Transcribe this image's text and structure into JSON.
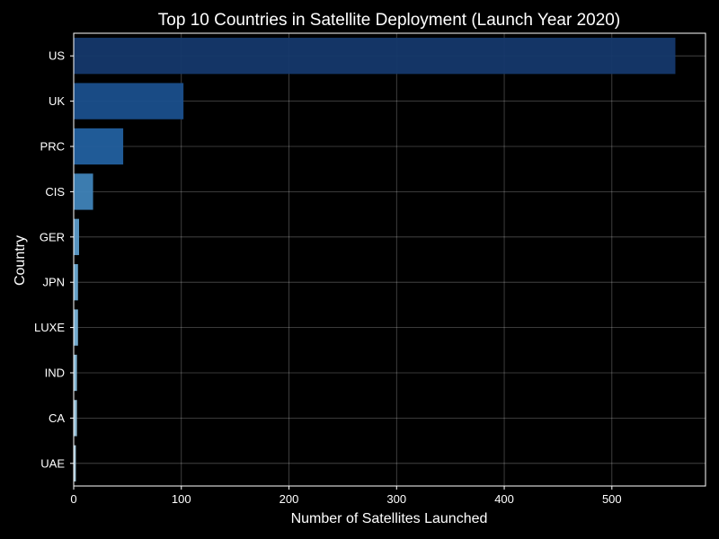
{
  "chart_data": {
    "type": "bar",
    "orientation": "horizontal",
    "title": "Top 10 Countries in Satellite Deployment (Launch Year 2020)",
    "xlabel": "Number of Satellites Launched",
    "ylabel": "Country",
    "categories": [
      "US",
      "UK",
      "PRC",
      "CIS",
      "GER",
      "JPN",
      "LUXE",
      "IND",
      "CA",
      "UAE"
    ],
    "values": [
      559,
      102,
      46,
      18,
      5,
      4,
      4,
      3,
      3,
      2
    ],
    "colors": [
      "#15386b",
      "#1a4f8c",
      "#22609f",
      "#3f83b8",
      "#5c9bc9",
      "#6aa9d2",
      "#79b3d8",
      "#89bedc",
      "#9bc7e0",
      "#aed2e6"
    ],
    "xlim": [
      0,
      587
    ],
    "xticks": [
      0,
      100,
      200,
      300,
      400,
      500
    ],
    "grid": true,
    "background": "#000000"
  }
}
